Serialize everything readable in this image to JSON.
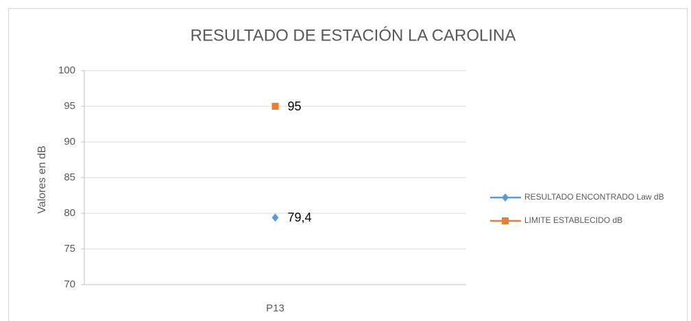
{
  "chart_data": {
    "type": "line",
    "title": "RESULTADO DE ESTACIÓN LA CAROLINA",
    "y_label": "Valores en  dB",
    "categories": [
      "P13"
    ],
    "series": [
      {
        "name": "RESULTADO ENCONTRADO Law dB",
        "color": "#5b9bd5",
        "marker": "diamond",
        "values": [
          79.4
        ],
        "value_labels": [
          "79,4"
        ]
      },
      {
        "name": "LIMITE ESTABLECIDO dB",
        "color": "#ed7d31",
        "marker": "square",
        "values": [
          95
        ]
      }
    ],
    "ylim": [
      70,
      100
    ],
    "yticks": [
      70,
      75,
      80,
      85,
      90,
      95,
      100
    ],
    "grid": true,
    "legend": "right"
  }
}
